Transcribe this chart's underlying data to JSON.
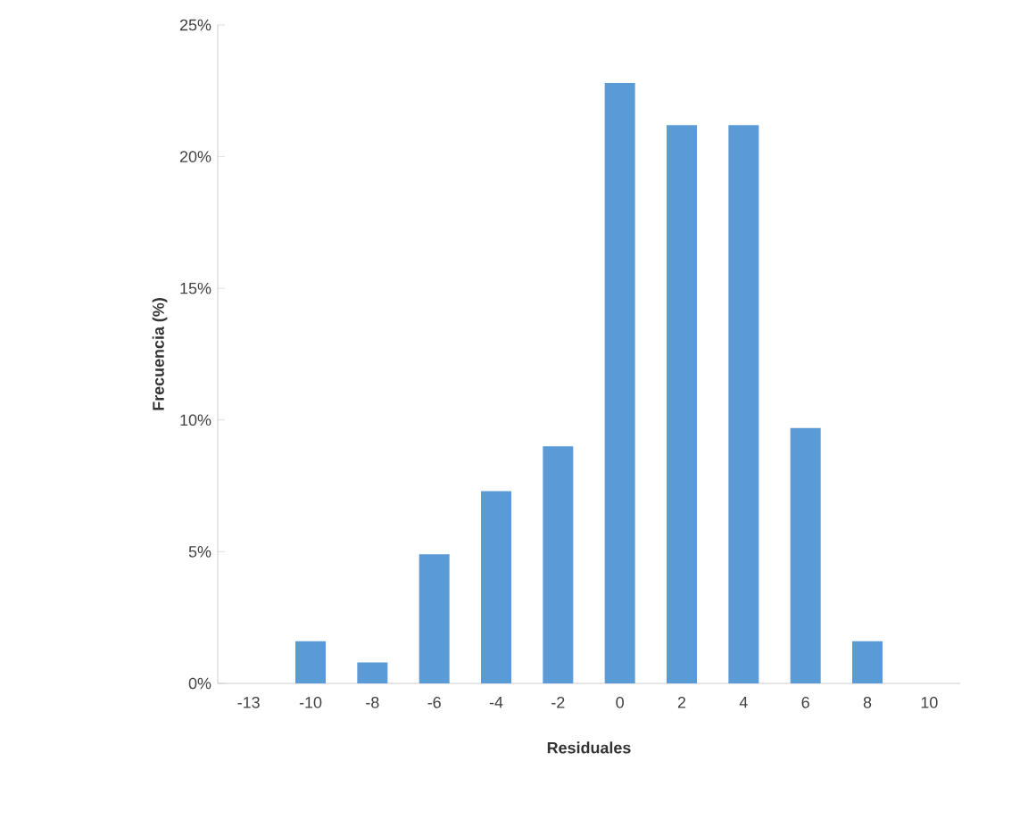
{
  "chart_data": {
    "type": "bar",
    "xlabel": "Residuales",
    "ylabel": "Frecuencia (%)",
    "categories": [
      "-13",
      "-10",
      "-8",
      "-6",
      "-4",
      "-2",
      "0",
      "2",
      "4",
      "6",
      "8",
      "10"
    ],
    "values": [
      0,
      1.6,
      0.8,
      4.9,
      7.3,
      9.0,
      22.8,
      21.2,
      21.2,
      9.7,
      1.6,
      0
    ],
    "color": "#5b9bd5",
    "ylim": [
      0,
      25
    ],
    "yticks": [
      {
        "value": 0,
        "label": "0%"
      },
      {
        "value": 5,
        "label": "5%"
      },
      {
        "value": 10,
        "label": "10%"
      },
      {
        "value": 15,
        "label": "15%"
      },
      {
        "value": 20,
        "label": "20%"
      },
      {
        "value": 25,
        "label": "25%"
      }
    ],
    "grid": false
  }
}
